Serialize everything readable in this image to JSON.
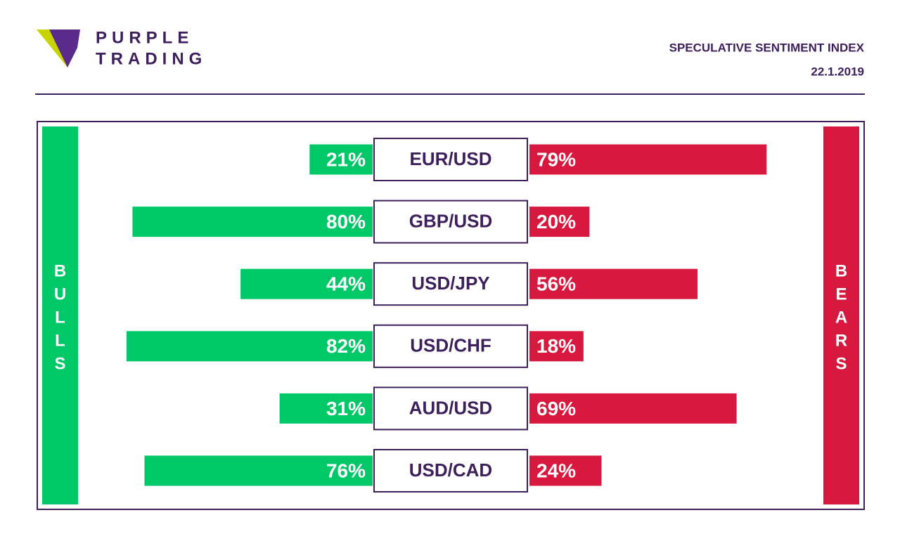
{
  "header": {
    "logo_lines": [
      "PURPLE",
      "TRADING"
    ],
    "title": "SPECULATIVE SENTIMENT INDEX",
    "date": "22.1.2019"
  },
  "chart_data": {
    "type": "diverging_bar",
    "categories": [
      "EUR/USD",
      "GBP/USD",
      "USD/JPY",
      "USD/CHF",
      "AUD/USD",
      "USD/CAD"
    ],
    "series": [
      {
        "name": "BULLS",
        "color": "#00c767",
        "values": [
          21,
          80,
          44,
          82,
          31,
          76
        ],
        "value_labels": [
          "21%",
          "80%",
          "44%",
          "82%",
          "31%",
          "76%"
        ]
      },
      {
        "name": "BEARS",
        "color": "#d8193f",
        "values": [
          79,
          20,
          56,
          18,
          69,
          24
        ],
        "value_labels": [
          "79%",
          "20%",
          "56%",
          "18%",
          "69%",
          "24%"
        ]
      }
    ]
  }
}
